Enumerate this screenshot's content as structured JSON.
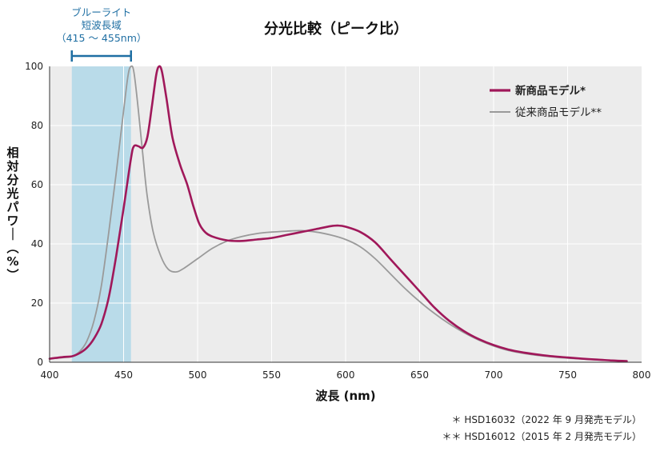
{
  "chart_data": {
    "type": "line",
    "title": "分光比較（ピーク比）",
    "xlabel": "波長 (nm)",
    "ylabel": "相対分光パワー（%）",
    "xlim": [
      400,
      800
    ],
    "ylim": [
      0,
      100
    ],
    "x_ticks": [
      "400",
      "450",
      "500",
      "550",
      "600",
      "650",
      "700",
      "750",
      "800"
    ],
    "y_ticks": [
      "0",
      "20",
      "40",
      "60",
      "80",
      "100"
    ],
    "grid": true,
    "legend_position": "top-right",
    "band": {
      "label_lines": [
        "ブルーライト",
        "短波長域",
        "（415 ～ 455nm）"
      ],
      "range": [
        415,
        455
      ],
      "color": "#b9dbe9",
      "bracket_color": "#1f6fa3"
    },
    "series": [
      {
        "name": "新商品モデル*",
        "color": "#a0185a",
        "points": [
          [
            400,
            1.2
          ],
          [
            410,
            1.8
          ],
          [
            415,
            2.0
          ],
          [
            420,
            3.0
          ],
          [
            425,
            4.8
          ],
          [
            430,
            8.0
          ],
          [
            435,
            13.0
          ],
          [
            440,
            22.0
          ],
          [
            445,
            36.0
          ],
          [
            450,
            52.0
          ],
          [
            455,
            69.0
          ],
          [
            457,
            73.0
          ],
          [
            460,
            73.0
          ],
          [
            463,
            72.5
          ],
          [
            466,
            76.0
          ],
          [
            469,
            86.0
          ],
          [
            472,
            97.0
          ],
          [
            474,
            100.0
          ],
          [
            476,
            98.0
          ],
          [
            479,
            89.0
          ],
          [
            483,
            76.0
          ],
          [
            488,
            67.0
          ],
          [
            493,
            60.0
          ],
          [
            497,
            53.0
          ],
          [
            501,
            47.0
          ],
          [
            505,
            44.0
          ],
          [
            510,
            42.5
          ],
          [
            520,
            41.2
          ],
          [
            530,
            41.0
          ],
          [
            540,
            41.5
          ],
          [
            550,
            42.0
          ],
          [
            560,
            43.0
          ],
          [
            570,
            44.0
          ],
          [
            580,
            45.0
          ],
          [
            590,
            46.0
          ],
          [
            595,
            46.2
          ],
          [
            600,
            45.8
          ],
          [
            610,
            44.0
          ],
          [
            620,
            40.5
          ],
          [
            630,
            35.0
          ],
          [
            640,
            29.5
          ],
          [
            650,
            24.0
          ],
          [
            660,
            18.5
          ],
          [
            670,
            14.0
          ],
          [
            680,
            10.5
          ],
          [
            690,
            7.8
          ],
          [
            700,
            5.8
          ],
          [
            710,
            4.3
          ],
          [
            720,
            3.3
          ],
          [
            730,
            2.6
          ],
          [
            740,
            2.0
          ],
          [
            750,
            1.6
          ],
          [
            760,
            1.2
          ],
          [
            770,
            0.9
          ],
          [
            780,
            0.6
          ],
          [
            790,
            0.4
          ]
        ]
      },
      {
        "name": "従来商品モデル**",
        "color": "#9a9a9a",
        "points": [
          [
            400,
            1.2
          ],
          [
            410,
            1.6
          ],
          [
            415,
            2.0
          ],
          [
            420,
            3.5
          ],
          [
            425,
            7.0
          ],
          [
            430,
            14.0
          ],
          [
            435,
            26.0
          ],
          [
            440,
            44.0
          ],
          [
            445,
            64.0
          ],
          [
            450,
            85.0
          ],
          [
            453,
            97.0
          ],
          [
            455,
            100.0
          ],
          [
            457,
            98.0
          ],
          [
            460,
            85.0
          ],
          [
            463,
            70.0
          ],
          [
            466,
            56.0
          ],
          [
            470,
            44.0
          ],
          [
            475,
            36.0
          ],
          [
            480,
            31.5
          ],
          [
            485,
            30.5
          ],
          [
            490,
            31.5
          ],
          [
            500,
            35.0
          ],
          [
            510,
            38.5
          ],
          [
            520,
            41.0
          ],
          [
            530,
            42.5
          ],
          [
            540,
            43.5
          ],
          [
            550,
            44.0
          ],
          [
            560,
            44.3
          ],
          [
            570,
            44.5
          ],
          [
            580,
            44.0
          ],
          [
            590,
            43.0
          ],
          [
            600,
            41.5
          ],
          [
            610,
            39.0
          ],
          [
            620,
            35.0
          ],
          [
            630,
            30.0
          ],
          [
            640,
            25.0
          ],
          [
            650,
            20.5
          ],
          [
            660,
            16.5
          ],
          [
            670,
            13.0
          ],
          [
            680,
            10.0
          ],
          [
            690,
            7.5
          ],
          [
            700,
            5.5
          ],
          [
            710,
            4.0
          ],
          [
            720,
            3.0
          ],
          [
            730,
            2.3
          ],
          [
            740,
            1.8
          ],
          [
            750,
            1.4
          ],
          [
            760,
            1.1
          ],
          [
            770,
            0.8
          ],
          [
            780,
            0.6
          ],
          [
            790,
            0.4
          ]
        ]
      }
    ]
  },
  "footnotes": [
    "＊ HSD16032（2022 年 9 月発売モデル）",
    "＊＊ HSD16012（2015 年 2 月発売モデル）"
  ]
}
